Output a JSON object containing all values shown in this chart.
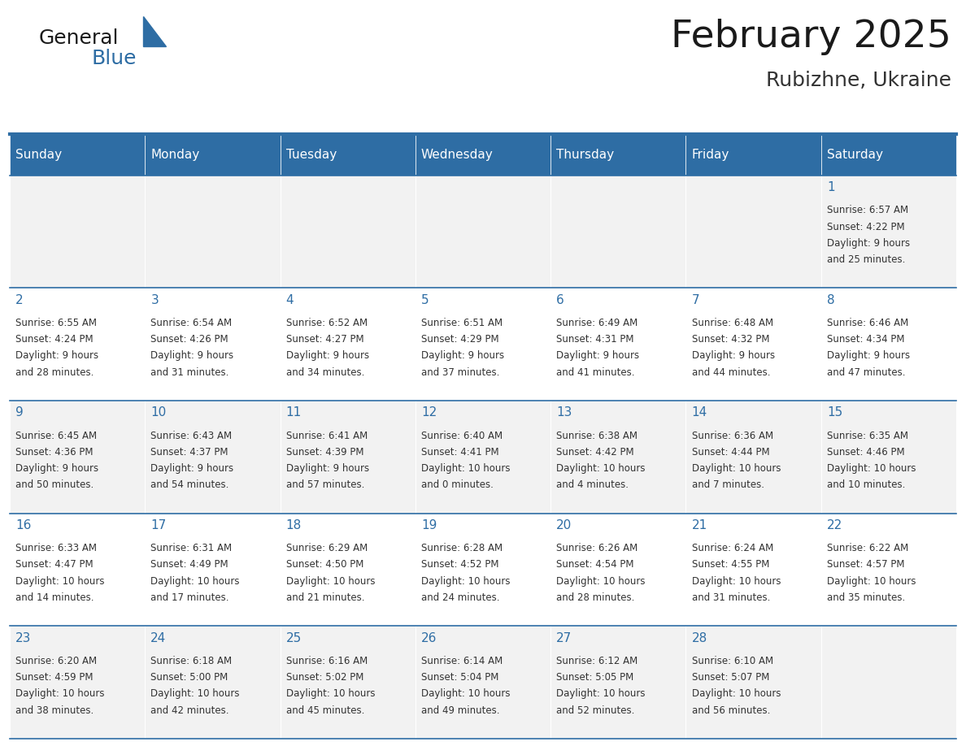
{
  "title": "February 2025",
  "subtitle": "Rubizhne, Ukraine",
  "header_bg": "#2E6DA4",
  "header_text_color": "#FFFFFF",
  "weekdays": [
    "Sunday",
    "Monday",
    "Tuesday",
    "Wednesday",
    "Thursday",
    "Friday",
    "Saturday"
  ],
  "cell_bg_even": "#F2F2F2",
  "cell_bg_odd": "#FFFFFF",
  "title_color": "#1a1a1a",
  "subtitle_color": "#333333",
  "day_number_color": "#2E6DA4",
  "info_text_color": "#333333",
  "logo_text_general_color": "#1a1a1a",
  "logo_text_blue_color": "#2E6DA4",
  "border_color": "#2E6DA4",
  "days": [
    {
      "date": 1,
      "row": 0,
      "col": 6,
      "sunrise": "6:57 AM",
      "sunset": "4:22 PM",
      "daylight": "9 hours and 25 minutes."
    },
    {
      "date": 2,
      "row": 1,
      "col": 0,
      "sunrise": "6:55 AM",
      "sunset": "4:24 PM",
      "daylight": "9 hours and 28 minutes."
    },
    {
      "date": 3,
      "row": 1,
      "col": 1,
      "sunrise": "6:54 AM",
      "sunset": "4:26 PM",
      "daylight": "9 hours and 31 minutes."
    },
    {
      "date": 4,
      "row": 1,
      "col": 2,
      "sunrise": "6:52 AM",
      "sunset": "4:27 PM",
      "daylight": "9 hours and 34 minutes."
    },
    {
      "date": 5,
      "row": 1,
      "col": 3,
      "sunrise": "6:51 AM",
      "sunset": "4:29 PM",
      "daylight": "9 hours and 37 minutes."
    },
    {
      "date": 6,
      "row": 1,
      "col": 4,
      "sunrise": "6:49 AM",
      "sunset": "4:31 PM",
      "daylight": "9 hours and 41 minutes."
    },
    {
      "date": 7,
      "row": 1,
      "col": 5,
      "sunrise": "6:48 AM",
      "sunset": "4:32 PM",
      "daylight": "9 hours and 44 minutes."
    },
    {
      "date": 8,
      "row": 1,
      "col": 6,
      "sunrise": "6:46 AM",
      "sunset": "4:34 PM",
      "daylight": "9 hours and 47 minutes."
    },
    {
      "date": 9,
      "row": 2,
      "col": 0,
      "sunrise": "6:45 AM",
      "sunset": "4:36 PM",
      "daylight": "9 hours and 50 minutes."
    },
    {
      "date": 10,
      "row": 2,
      "col": 1,
      "sunrise": "6:43 AM",
      "sunset": "4:37 PM",
      "daylight": "9 hours and 54 minutes."
    },
    {
      "date": 11,
      "row": 2,
      "col": 2,
      "sunrise": "6:41 AM",
      "sunset": "4:39 PM",
      "daylight": "9 hours and 57 minutes."
    },
    {
      "date": 12,
      "row": 2,
      "col": 3,
      "sunrise": "6:40 AM",
      "sunset": "4:41 PM",
      "daylight": "10 hours and 0 minutes."
    },
    {
      "date": 13,
      "row": 2,
      "col": 4,
      "sunrise": "6:38 AM",
      "sunset": "4:42 PM",
      "daylight": "10 hours and 4 minutes."
    },
    {
      "date": 14,
      "row": 2,
      "col": 5,
      "sunrise": "6:36 AM",
      "sunset": "4:44 PM",
      "daylight": "10 hours and 7 minutes."
    },
    {
      "date": 15,
      "row": 2,
      "col": 6,
      "sunrise": "6:35 AM",
      "sunset": "4:46 PM",
      "daylight": "10 hours and 10 minutes."
    },
    {
      "date": 16,
      "row": 3,
      "col": 0,
      "sunrise": "6:33 AM",
      "sunset": "4:47 PM",
      "daylight": "10 hours and 14 minutes."
    },
    {
      "date": 17,
      "row": 3,
      "col": 1,
      "sunrise": "6:31 AM",
      "sunset": "4:49 PM",
      "daylight": "10 hours and 17 minutes."
    },
    {
      "date": 18,
      "row": 3,
      "col": 2,
      "sunrise": "6:29 AM",
      "sunset": "4:50 PM",
      "daylight": "10 hours and 21 minutes."
    },
    {
      "date": 19,
      "row": 3,
      "col": 3,
      "sunrise": "6:28 AM",
      "sunset": "4:52 PM",
      "daylight": "10 hours and 24 minutes."
    },
    {
      "date": 20,
      "row": 3,
      "col": 4,
      "sunrise": "6:26 AM",
      "sunset": "4:54 PM",
      "daylight": "10 hours and 28 minutes."
    },
    {
      "date": 21,
      "row": 3,
      "col": 5,
      "sunrise": "6:24 AM",
      "sunset": "4:55 PM",
      "daylight": "10 hours and 31 minutes."
    },
    {
      "date": 22,
      "row": 3,
      "col": 6,
      "sunrise": "6:22 AM",
      "sunset": "4:57 PM",
      "daylight": "10 hours and 35 minutes."
    },
    {
      "date": 23,
      "row": 4,
      "col": 0,
      "sunrise": "6:20 AM",
      "sunset": "4:59 PM",
      "daylight": "10 hours and 38 minutes."
    },
    {
      "date": 24,
      "row": 4,
      "col": 1,
      "sunrise": "6:18 AM",
      "sunset": "5:00 PM",
      "daylight": "10 hours and 42 minutes."
    },
    {
      "date": 25,
      "row": 4,
      "col": 2,
      "sunrise": "6:16 AM",
      "sunset": "5:02 PM",
      "daylight": "10 hours and 45 minutes."
    },
    {
      "date": 26,
      "row": 4,
      "col": 3,
      "sunrise": "6:14 AM",
      "sunset": "5:04 PM",
      "daylight": "10 hours and 49 minutes."
    },
    {
      "date": 27,
      "row": 4,
      "col": 4,
      "sunrise": "6:12 AM",
      "sunset": "5:05 PM",
      "daylight": "10 hours and 52 minutes."
    },
    {
      "date": 28,
      "row": 4,
      "col": 5,
      "sunrise": "6:10 AM",
      "sunset": "5:07 PM",
      "daylight": "10 hours and 56 minutes."
    }
  ],
  "num_rows": 5
}
